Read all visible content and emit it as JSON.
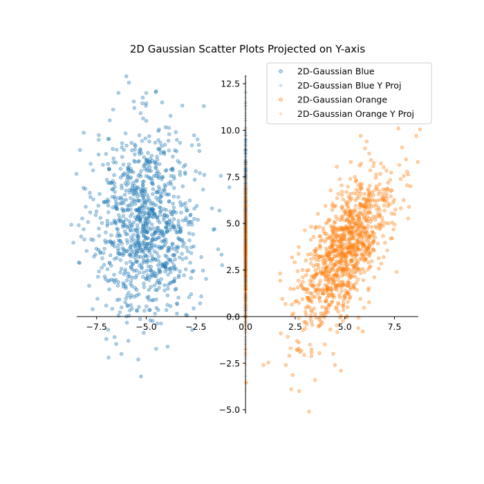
{
  "chart_data": {
    "type": "scatter",
    "title": "2D Gaussian Scatter Plots Projected on Y-axis",
    "xlabel": "",
    "ylabel": "",
    "xlim": [
      -8.5,
      8.7
    ],
    "ylim": [
      -5.2,
      12.95
    ],
    "xticks": [
      -7.5,
      -5.0,
      -2.5,
      0.0,
      2.5,
      5.0,
      7.5
    ],
    "xtick_labels": [
      "−7.5",
      "−5.0",
      "−2.5",
      "0.0",
      "2.5",
      "5.0",
      "7.5"
    ],
    "yticks": [
      -5.0,
      -2.5,
      0.0,
      2.5,
      5.0,
      7.5,
      10.0,
      12.5
    ],
    "ytick_labels": [
      "−5.0",
      "−2.5",
      "0.0",
      "2.5",
      "5.0",
      "7.5",
      "10.0",
      "12.5"
    ],
    "spines": "axes through origin",
    "grid": false,
    "legend_position": "top-right",
    "series": [
      {
        "name": "2D-Gaussian Blue",
        "color": "#1f77b4",
        "marker": "circle",
        "alpha": 0.35,
        "distribution": {
          "mean": [
            -5.0,
            5.0
          ],
          "std": [
            1.3,
            2.5
          ],
          "correlation": 0.0,
          "n": 1000
        },
        "points": [
          [
            -6.0,
            12.9
          ],
          [
            -4.5,
            12.1
          ],
          [
            -5.0,
            12.0
          ],
          [
            -2.1,
            11.3
          ],
          [
            -4.2,
            11.5
          ],
          [
            -5.6,
            11.2
          ],
          [
            -7.4,
            8.7
          ],
          [
            -7.8,
            8.2
          ],
          [
            -8.4,
            4.9
          ],
          [
            -8.4,
            2.9
          ],
          [
            -7.7,
            0.4
          ],
          [
            -6.6,
            -1.1
          ],
          [
            -5.9,
            -1.3
          ],
          [
            -6.9,
            -2.2
          ],
          [
            -5.4,
            -2.3
          ],
          [
            -4.8,
            -0.2
          ],
          [
            -3.0,
            0.1
          ],
          [
            -2.4,
            5.2
          ],
          [
            -2.5,
            7.8
          ],
          [
            -2.7,
            9.2
          ]
        ]
      },
      {
        "name": "2D-Gaussian Blue Y Proj",
        "color": "#1f77b4",
        "marker": "plus",
        "alpha": 0.25,
        "projection_of": "2D-Gaussian Blue",
        "x": 0.0
      },
      {
        "name": "2D-Gaussian Orange",
        "color": "#ff7f0e",
        "marker": "circle",
        "alpha": 0.35,
        "distribution": {
          "mean": [
            5.0,
            3.5
          ],
          "std": [
            1.2,
            2.1
          ],
          "correlation": 0.65,
          "n": 1000
        },
        "points": [
          [
            8.6,
            9.7
          ],
          [
            7.7,
            10.1
          ],
          [
            6.1,
            9.4
          ],
          [
            5.3,
            8.3
          ],
          [
            8.3,
            7.0
          ],
          [
            0.9,
            -2.6
          ],
          [
            2.2,
            -2.1
          ],
          [
            2.3,
            -3.9
          ],
          [
            2.7,
            -4.0
          ],
          [
            3.2,
            -5.1
          ],
          [
            3.5,
            -3.4
          ],
          [
            4.5,
            -2.6
          ],
          [
            4.8,
            -2.9
          ],
          [
            7.6,
            2.4
          ],
          [
            7.2,
            5.0
          ],
          [
            2.5,
            0.8
          ],
          [
            5.9,
            -0.8
          ]
        ]
      },
      {
        "name": "2D-Gaussian Orange Y Proj",
        "color": "#ff7f0e",
        "marker": "plus",
        "alpha": 0.25,
        "projection_of": "2D-Gaussian Orange",
        "x": 0.0
      }
    ]
  }
}
